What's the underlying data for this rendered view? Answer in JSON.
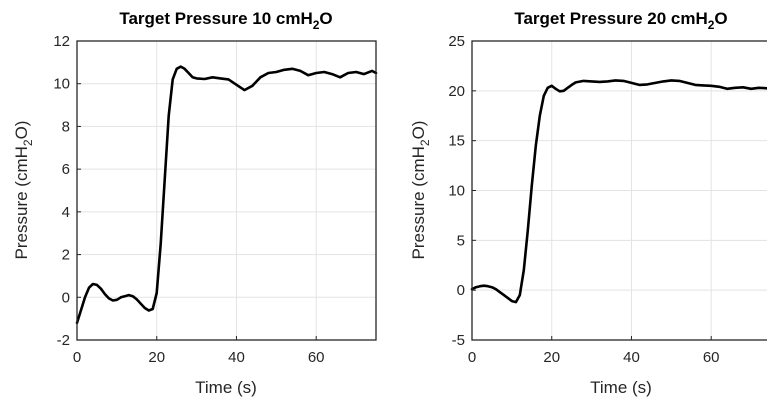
{
  "chart_data": [
    {
      "type": "line",
      "title": "Target Pressure 10 cmH",
      "title_sub": "2",
      "title_tail": "O",
      "xlabel": "Time (s)",
      "ylabel": "Pressure (cmH",
      "ylabel_sub": "2",
      "ylabel_tail": "O)",
      "xlim": [
        0,
        75
      ],
      "ylim": [
        -2,
        12
      ],
      "xticks": [
        0,
        20,
        40,
        60
      ],
      "yticks": [
        -2,
        0,
        2,
        4,
        6,
        8,
        10,
        12
      ],
      "grid": true,
      "line_color": "#000000",
      "series": [
        {
          "x": [
            0,
            1,
            2,
            3,
            4,
            5,
            6,
            7,
            8,
            9,
            10,
            11,
            12,
            13,
            14,
            15,
            16,
            17,
            18,
            19,
            20,
            21,
            22,
            23,
            24,
            25,
            26,
            27,
            28,
            29,
            30,
            32,
            34,
            36,
            38,
            40,
            42,
            44,
            46,
            48,
            50,
            52,
            54,
            56,
            58,
            60,
            62,
            64,
            66,
            68,
            70,
            72,
            74,
            75
          ],
          "y": [
            -1.2,
            -0.6,
            0.0,
            0.45,
            0.62,
            0.58,
            0.4,
            0.15,
            -0.05,
            -0.15,
            -0.12,
            0.0,
            0.05,
            0.1,
            0.05,
            -0.1,
            -0.3,
            -0.5,
            -0.62,
            -0.55,
            0.2,
            2.5,
            5.5,
            8.5,
            10.2,
            10.7,
            10.8,
            10.7,
            10.5,
            10.3,
            10.25,
            10.22,
            10.3,
            10.25,
            10.2,
            9.95,
            9.7,
            9.9,
            10.3,
            10.5,
            10.55,
            10.65,
            10.7,
            10.6,
            10.4,
            10.5,
            10.55,
            10.45,
            10.3,
            10.5,
            10.55,
            10.45,
            10.6,
            10.5
          ]
        }
      ]
    },
    {
      "type": "line",
      "title": "Target Pressure 20 cmH",
      "title_sub": "2",
      "title_tail": "O",
      "xlabel": "Time (s)",
      "ylabel": "Pressure (cmH",
      "ylabel_sub": "2",
      "ylabel_tail": "O)",
      "xlim": [
        0,
        75
      ],
      "ylim": [
        -5,
        25
      ],
      "xticks": [
        0,
        20,
        40,
        60
      ],
      "yticks": [
        -5,
        0,
        5,
        10,
        15,
        20,
        25
      ],
      "grid": true,
      "line_color": "#000000",
      "series": [
        {
          "x": [
            0,
            1,
            2,
            3,
            4,
            5,
            6,
            7,
            8,
            9,
            10,
            11,
            12,
            13,
            14,
            15,
            16,
            17,
            18,
            19,
            20,
            21,
            22,
            23,
            24,
            25,
            26,
            28,
            30,
            32,
            34,
            36,
            38,
            40,
            42,
            44,
            46,
            48,
            50,
            52,
            54,
            56,
            58,
            60,
            62,
            64,
            66,
            68,
            70,
            72,
            74,
            75
          ],
          "y": [
            0.1,
            0.3,
            0.4,
            0.45,
            0.4,
            0.3,
            0.1,
            -0.2,
            -0.5,
            -0.8,
            -1.1,
            -1.2,
            -0.5,
            2.0,
            6.0,
            10.5,
            14.5,
            17.5,
            19.5,
            20.3,
            20.5,
            20.2,
            19.95,
            20.0,
            20.3,
            20.6,
            20.85,
            21.0,
            20.95,
            20.9,
            20.95,
            21.05,
            21.0,
            20.8,
            20.6,
            20.65,
            20.8,
            20.95,
            21.05,
            21.0,
            20.8,
            20.6,
            20.55,
            20.5,
            20.4,
            20.2,
            20.3,
            20.35,
            20.2,
            20.3,
            20.25,
            20.2
          ]
        }
      ]
    }
  ]
}
